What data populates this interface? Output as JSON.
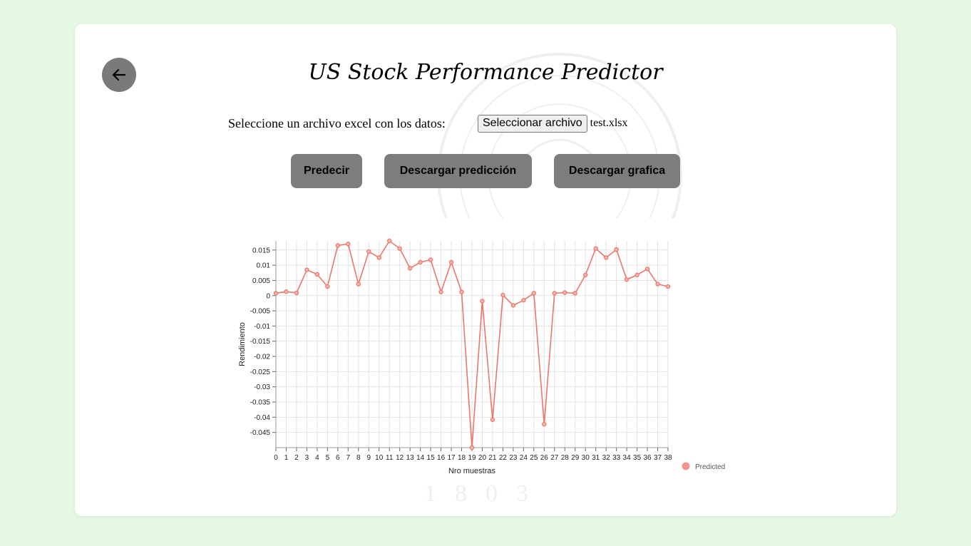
{
  "header": {
    "title": "US Stock Performance Predictor"
  },
  "file_select": {
    "label": "Seleccione un archivo excel con los datos:",
    "button_label": "Seleccionar archivo",
    "file_name": "test.xlsx"
  },
  "actions": {
    "predict_label": "Predecir",
    "download_prediction_label": "Descargar predicción",
    "download_chart_label": "Descargar grafica"
  },
  "watermark": {
    "year": "1803"
  },
  "colors": {
    "series": "#e8776a",
    "background": "#e5f8e4",
    "button": "#7d7d7d"
  },
  "chart_data": {
    "type": "line",
    "xlabel": "Nro muestras",
    "ylabel": "Rendimiento",
    "ylim": [
      -0.05,
      0.018
    ],
    "yticks": [
      0.015,
      0.01,
      0.005,
      0,
      -0.005,
      -0.01,
      -0.015,
      -0.02,
      -0.025,
      -0.03,
      -0.035,
      -0.04,
      -0.045
    ],
    "ytick_labels": [
      "0.015",
      "0.01",
      "0.005",
      "0",
      "-0.005",
      "-0.01",
      "-0.015",
      "-0.02",
      "-0.025",
      "-0.03",
      "-0.035",
      "-0.04",
      "-0.045"
    ],
    "grid": true,
    "legend_position": "bottom-right",
    "x": [
      0,
      1,
      2,
      3,
      4,
      5,
      6,
      7,
      8,
      9,
      10,
      11,
      12,
      13,
      14,
      15,
      16,
      17,
      18,
      19,
      20,
      21,
      22,
      23,
      24,
      25,
      26,
      27,
      28,
      29,
      30,
      31,
      32,
      33,
      34,
      35,
      36,
      37,
      38
    ],
    "series": [
      {
        "name": "Predicted",
        "values": [
          0.0008,
          0.0013,
          0.0009,
          0.0085,
          0.007,
          0.003,
          0.0165,
          0.017,
          0.0038,
          0.0145,
          0.0125,
          0.018,
          0.0155,
          0.009,
          0.011,
          0.0118,
          0.0012,
          0.011,
          0.0012,
          -0.05,
          -0.0018,
          -0.0408,
          0.0002,
          -0.0032,
          -0.0015,
          0.0008,
          -0.0423,
          0.0008,
          0.001,
          0.0008,
          0.0068,
          0.0155,
          0.0125,
          0.0152,
          0.0053,
          0.0068,
          0.0088,
          0.0038,
          0.003
        ]
      }
    ]
  }
}
